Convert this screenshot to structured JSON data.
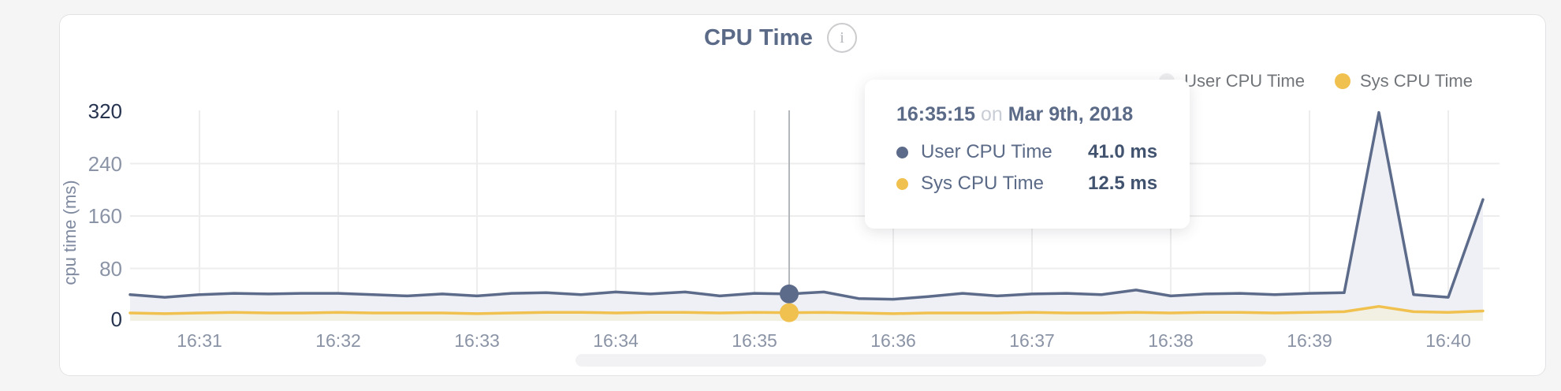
{
  "header": {
    "title": "CPU Time",
    "info_icon": "i"
  },
  "legend": {
    "user": {
      "label": "User CPU Time",
      "dot_color": "#ededef"
    },
    "sys": {
      "label": "Sys CPU Time",
      "dot_color": "#f0c14e"
    }
  },
  "tooltip": {
    "time": "16:35:15",
    "on_word": "on",
    "date": "Mar 9th, 2018",
    "rows": [
      {
        "label": "User CPU Time",
        "value": "41.0 ms",
        "color": "#5d6b8a"
      },
      {
        "label": "Sys CPU Time",
        "value": "12.5 ms",
        "color": "#f0c14e"
      }
    ]
  },
  "chart_data": {
    "type": "area",
    "title": "CPU Time",
    "xlabel": "",
    "ylabel": "cpu time (ms)",
    "ylim": [
      0,
      320
    ],
    "yticks": [
      320,
      240,
      160,
      80,
      0
    ],
    "ytick_labels": [
      "320",
      "240",
      "160",
      "80",
      "0"
    ],
    "xtick_labels": [
      "16:31",
      "16:32",
      "16:33",
      "16:34",
      "16:35",
      "16:36",
      "16:37",
      "16:38",
      "16:39",
      "16:40"
    ],
    "x_start": "16:30:30",
    "x_step_seconds": 15,
    "x_times": [
      "16:30:30",
      "16:30:45",
      "16:31:00",
      "16:31:15",
      "16:31:30",
      "16:31:45",
      "16:32:00",
      "16:32:15",
      "16:32:30",
      "16:32:45",
      "16:33:00",
      "16:33:15",
      "16:33:30",
      "16:33:45",
      "16:34:00",
      "16:34:15",
      "16:34:30",
      "16:34:45",
      "16:35:00",
      "16:35:15",
      "16:35:30",
      "16:35:45",
      "16:36:00",
      "16:36:15",
      "16:36:30",
      "16:36:45",
      "16:37:00",
      "16:37:15",
      "16:37:30",
      "16:37:45",
      "16:38:00",
      "16:38:15",
      "16:38:30",
      "16:38:45",
      "16:39:00",
      "16:39:15",
      "16:39:30",
      "16:39:45",
      "16:40:00",
      "16:40:15"
    ],
    "series": [
      {
        "name": "User CPU Time",
        "color": "#5d6b8a",
        "fill": "#eef0f5",
        "values": [
          40,
          36,
          40,
          42,
          41,
          42,
          42,
          40,
          38,
          41,
          38,
          42,
          43,
          40,
          44,
          41,
          44,
          38,
          42,
          41,
          44,
          34,
          33,
          37,
          42,
          38,
          41,
          42,
          40,
          47,
          38,
          41,
          42,
          40,
          42,
          43,
          318,
          40,
          36,
          185
        ]
      },
      {
        "name": "Sys CPU Time",
        "color": "#f0c14e",
        "fill": "#f2efe3",
        "values": [
          12,
          11,
          12,
          13,
          12,
          12,
          13,
          12,
          12,
          12,
          11,
          12,
          13,
          13,
          12,
          13,
          13,
          12,
          13,
          12.5,
          13,
          12,
          11,
          12,
          12,
          12,
          13,
          12,
          12,
          13,
          12,
          13,
          13,
          12,
          13,
          14,
          22,
          14,
          13,
          15
        ]
      }
    ],
    "hover_index": 19,
    "hover_time": "16:35:15",
    "grid": true,
    "legend_position": "top-right",
    "grid_color": "#ededee",
    "crosshair_color": "#b4b7bc"
  }
}
